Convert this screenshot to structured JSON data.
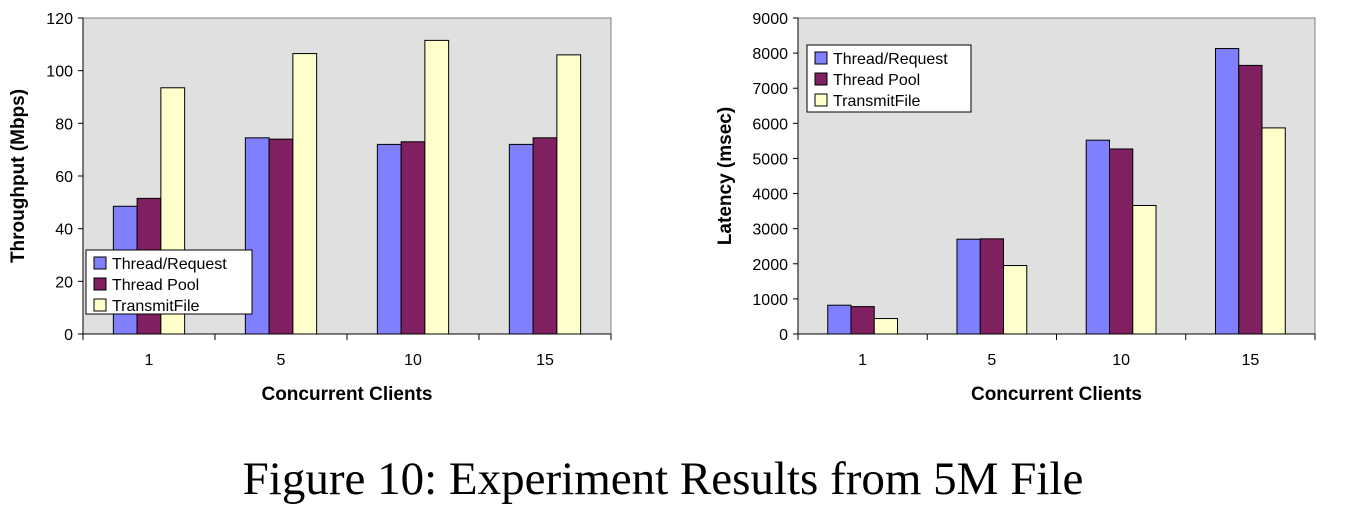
{
  "caption": "Figure 10: Experiment Results from 5M File",
  "chart_data": [
    {
      "type": "bar",
      "categories": [
        "1",
        "5",
        "10",
        "15"
      ],
      "series": [
        {
          "name": "Thread/Request",
          "values": [
            48.5,
            74.5,
            72,
            72
          ],
          "color": "#8080ff"
        },
        {
          "name": "Thread Pool",
          "values": [
            51.5,
            74,
            73,
            74.5
          ],
          "color": "#802060"
        },
        {
          "name": "TransmitFile",
          "values": [
            93.5,
            106.5,
            111.5,
            106
          ],
          "color": "#ffffcc"
        }
      ],
      "title": "",
      "xlabel": "Concurrent Clients",
      "ylabel": "Throughput (Mbps)",
      "ylim": [
        0,
        120
      ],
      "yticks": [
        "0",
        "20",
        "40",
        "60",
        "80",
        "100",
        "120"
      ],
      "grid": false,
      "legend": "bottom-left",
      "plot_background": "#e0e0e0"
    },
    {
      "type": "bar",
      "categories": [
        "1",
        "5",
        "10",
        "15"
      ],
      "series": [
        {
          "name": "Thread/Request",
          "values": [
            820,
            2700,
            5520,
            8130
          ],
          "color": "#8080ff"
        },
        {
          "name": "Thread Pool",
          "values": [
            780,
            2710,
            5270,
            7650
          ],
          "color": "#802060"
        },
        {
          "name": "TransmitFile",
          "values": [
            440,
            1950,
            3660,
            5870
          ],
          "color": "#ffffcc"
        }
      ],
      "title": "",
      "xlabel": "Concurrent Clients",
      "ylabel": "Latency (msec)",
      "ylim": [
        0,
        9000
      ],
      "yticks": [
        "0",
        "1000",
        "2000",
        "3000",
        "4000",
        "5000",
        "6000",
        "7000",
        "8000",
        "9000"
      ],
      "grid": false,
      "legend": "top-left",
      "plot_background": "#e0e0e0"
    }
  ]
}
